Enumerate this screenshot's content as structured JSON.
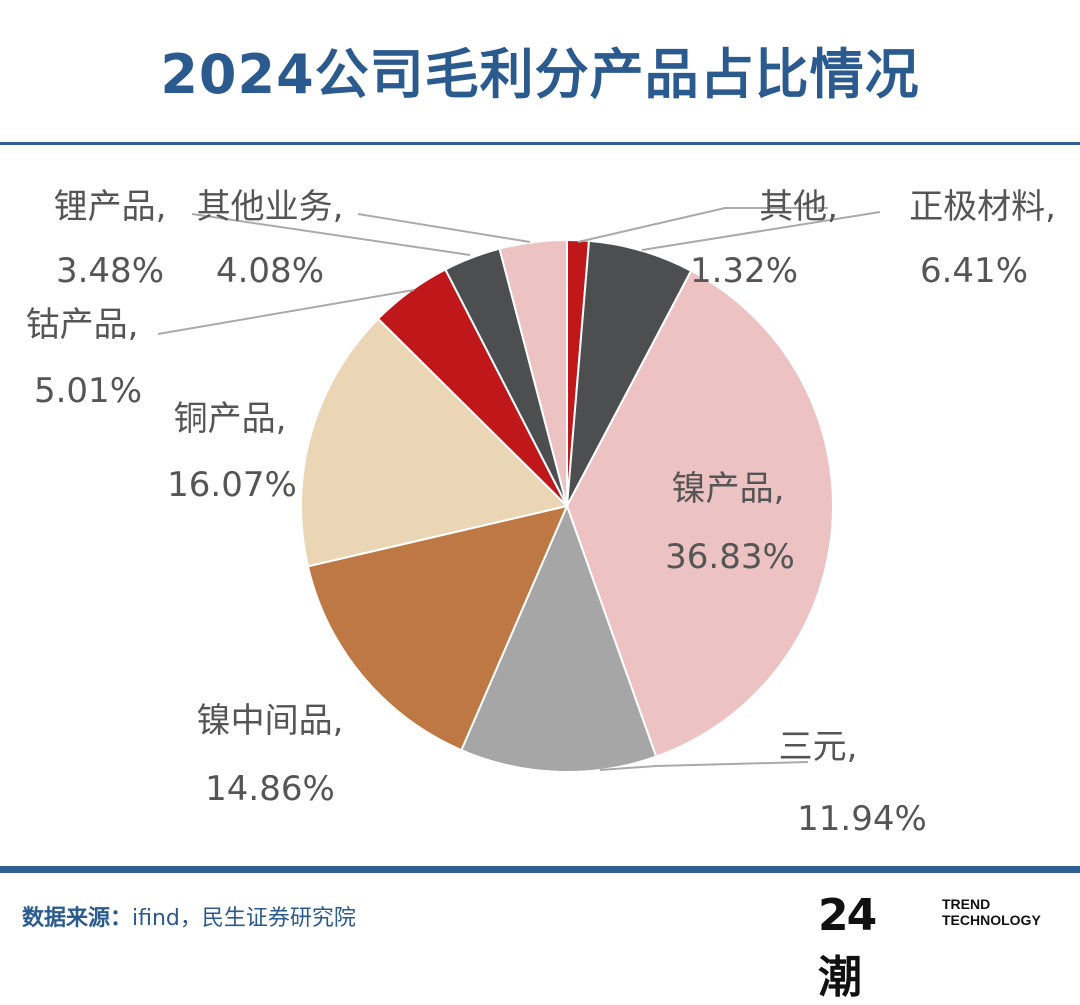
{
  "title": "2024公司毛利分产品占比情况",
  "footer": {
    "source_key": "数据来源：",
    "source_value": "ifind，民生证券研究院",
    "logo_mark": "24潮",
    "logo_text_1": "TREND",
    "logo_text_2": "TECHNOLOGY"
  },
  "chart_data": {
    "type": "pie",
    "start": "12 o'clock, clockwise",
    "slices": [
      {
        "name": "其他",
        "value": 1.32,
        "label": "1.32%",
        "color": "#c0171b"
      },
      {
        "name": "正极材料",
        "value": 6.41,
        "label": "6.41%",
        "color": "#4d4e50"
      },
      {
        "name": "镍产品",
        "value": 36.83,
        "label": "36.83%",
        "color": "#ecc2c3"
      },
      {
        "name": "三元",
        "value": 11.94,
        "label": "11.94%",
        "color": "#a6a6a6"
      },
      {
        "name": "镍中间品",
        "value": 14.86,
        "label": "14.86%",
        "color": "#bd7843"
      },
      {
        "name": "铜产品",
        "value": 16.07,
        "label": "16.07%",
        "color": "#ead6b5"
      },
      {
        "name": "钴产品",
        "value": 5.01,
        "label": "5.01%",
        "color": "#c0171b"
      },
      {
        "name": "锂产品",
        "value": 3.48,
        "label": "3.48%",
        "color": "#4d4e50"
      },
      {
        "name": "其他业务",
        "value": 4.08,
        "label": "4.08%",
        "color": "#ecc2c3"
      }
    ]
  }
}
